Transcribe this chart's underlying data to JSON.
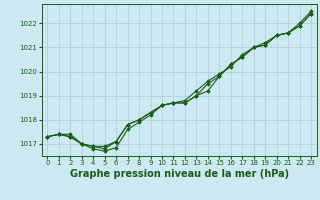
{
  "title": "Graphe pression niveau de la mer (hPa)",
  "background_color": "#cce8f0",
  "grid_color": "#aaccdd",
  "line_color": "#1a5c1a",
  "xlim": [
    -0.5,
    23.5
  ],
  "ylim": [
    1016.5,
    1022.8
  ],
  "yticks": [
    1017,
    1018,
    1019,
    1020,
    1021,
    1022
  ],
  "xticks": [
    0,
    1,
    2,
    3,
    4,
    5,
    6,
    7,
    8,
    9,
    10,
    11,
    12,
    13,
    14,
    15,
    16,
    17,
    18,
    19,
    20,
    21,
    22,
    23
  ],
  "series": [
    [
      1017.3,
      1017.4,
      1017.4,
      1017.0,
      1016.9,
      1016.8,
      1017.1,
      1017.8,
      1018.0,
      1018.3,
      1018.6,
      1018.7,
      1018.7,
      1019.0,
      1019.2,
      1019.8,
      1020.3,
      1020.6,
      1021.0,
      1021.1,
      1021.5,
      1021.6,
      1021.9,
      1022.4
    ],
    [
      1017.3,
      1017.4,
      1017.3,
      1017.0,
      1016.9,
      1016.9,
      1017.1,
      1017.8,
      1018.0,
      1018.3,
      1018.6,
      1018.7,
      1018.8,
      1019.2,
      1019.6,
      1019.9,
      1020.2,
      1020.7,
      1021.0,
      1021.2,
      1021.5,
      1021.6,
      1022.0,
      1022.5
    ],
    [
      1017.3,
      1017.4,
      1017.3,
      1017.0,
      1016.8,
      1016.7,
      1016.85,
      1017.6,
      1017.9,
      1018.2,
      1018.6,
      1018.7,
      1018.7,
      1019.0,
      1019.5,
      1019.8,
      1020.3,
      1020.6,
      1021.0,
      1021.1,
      1021.5,
      1021.6,
      1021.9,
      1022.4
    ]
  ],
  "marker": "D",
  "marker_size": 1.8,
  "line_width": 0.8,
  "title_fontsize": 7,
  "tick_fontsize": 5,
  "xlabel_fontsize": 7
}
